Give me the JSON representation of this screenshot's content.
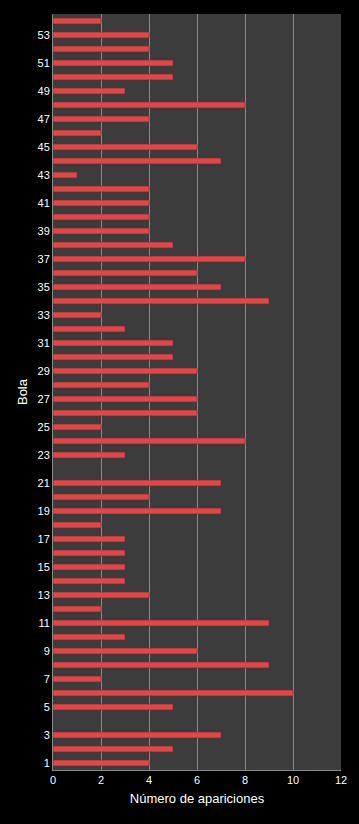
{
  "chart_data": {
    "type": "bar",
    "orientation": "horizontal",
    "x_label": "Número de apariciones",
    "y_label": "Bola",
    "categories": [
      "1",
      null,
      "3",
      null,
      "5",
      null,
      "7",
      null,
      "9",
      null,
      "11",
      null,
      "13",
      null,
      "15",
      null,
      "17",
      null,
      "19",
      null,
      "21",
      null,
      "23",
      null,
      "25",
      null,
      "27",
      null,
      "29",
      null,
      "31",
      null,
      "33",
      null,
      "35",
      null,
      "37",
      null,
      "39",
      null,
      "41",
      null,
      "43",
      null,
      "45",
      null,
      "47",
      null,
      "49",
      null,
      "51",
      null,
      "53",
      null
    ],
    "values": [
      4,
      5,
      7,
      0,
      5,
      10,
      2,
      9,
      6,
      3,
      9,
      2,
      4,
      3,
      3,
      3,
      3,
      2,
      7,
      4,
      7,
      0,
      3,
      8,
      2,
      6,
      6,
      4,
      6,
      5,
      5,
      3,
      2,
      9,
      7,
      6,
      8,
      5,
      4,
      4,
      4,
      4,
      1,
      7,
      6,
      2,
      4,
      8,
      3,
      5,
      5,
      4,
      4,
      2
    ],
    "color": "#d94a4a",
    "xlim": [
      0,
      12
    ],
    "xticks": [
      0,
      2,
      4,
      6,
      8,
      10,
      12
    ],
    "grid": true
  }
}
